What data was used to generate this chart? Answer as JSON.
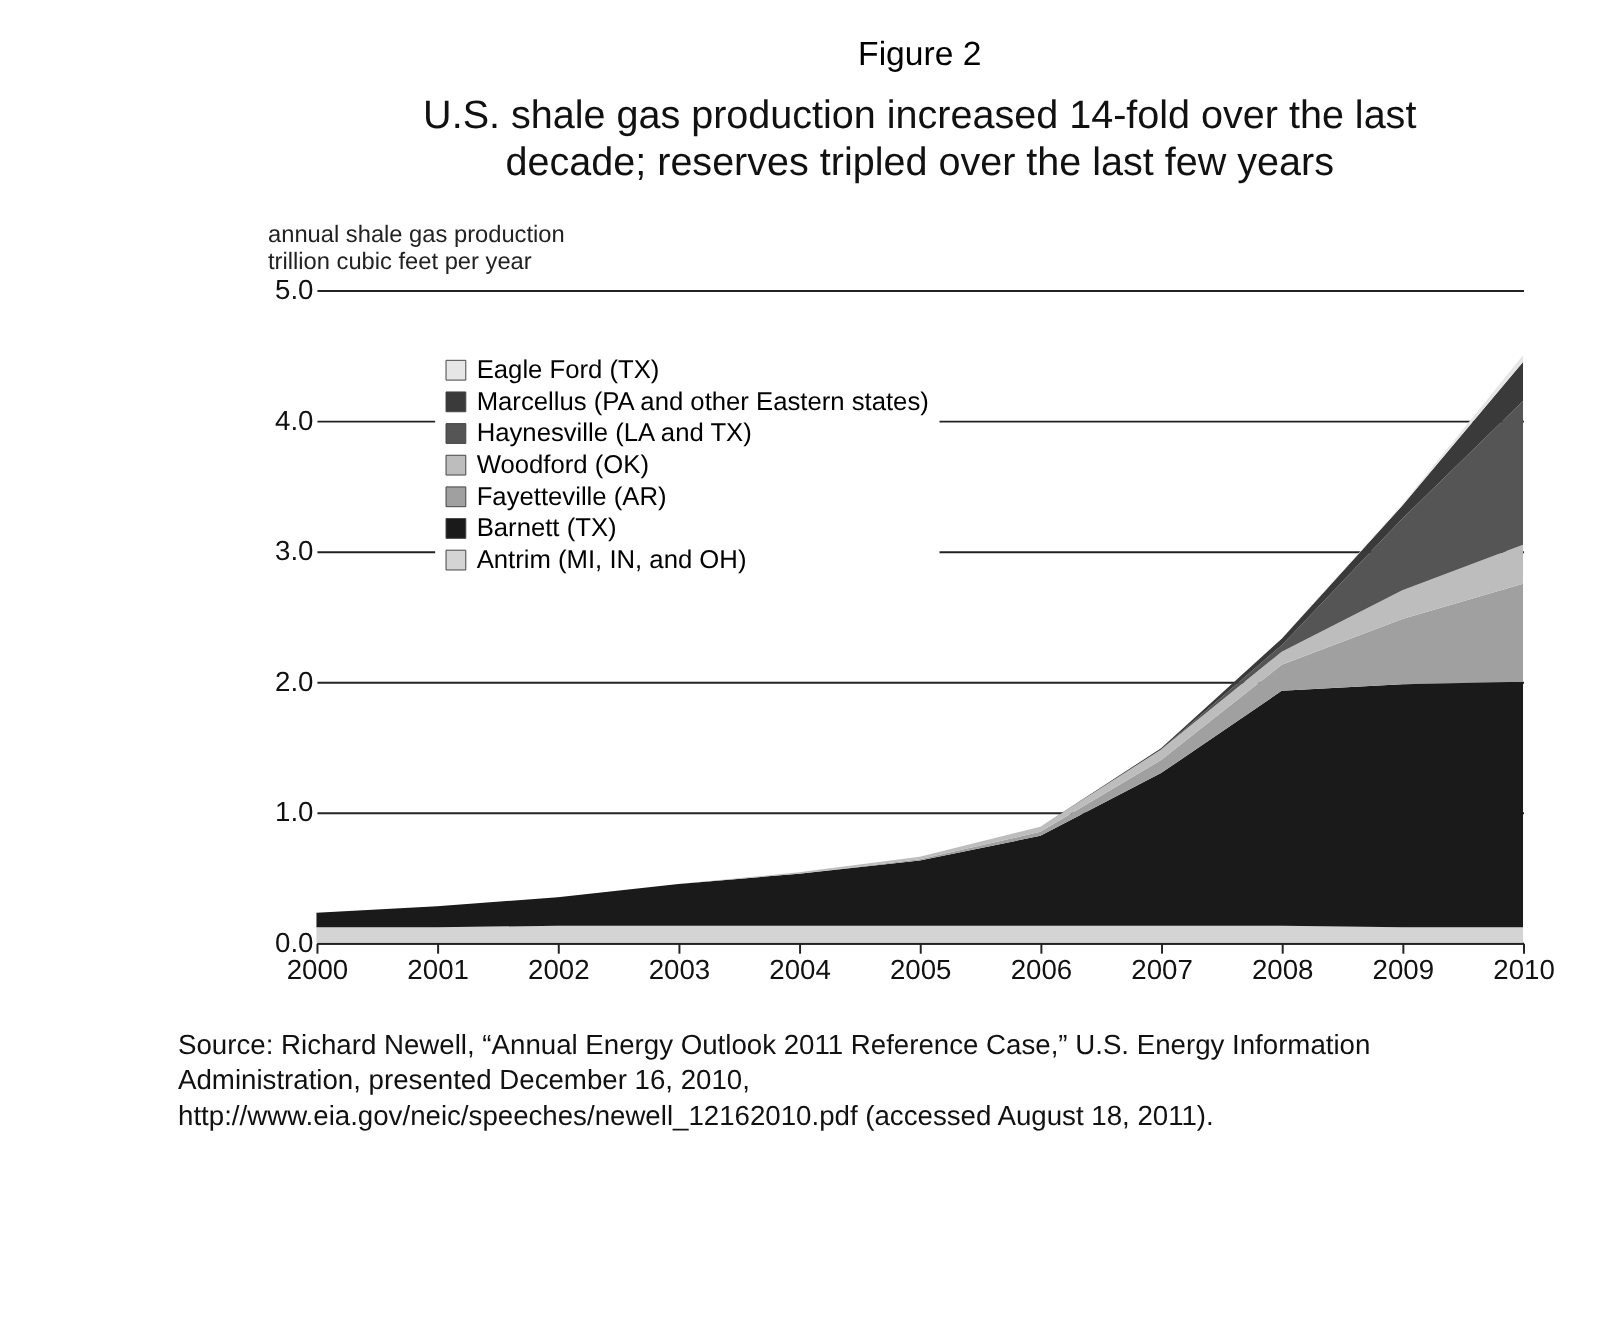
{
  "chart_data": {
    "type": "area",
    "stacked": true,
    "title": "Figure 2",
    "subtitle": "U.S. shale gas production increased 14-fold over the last decade; reserves tripled over the last few years",
    "ylabel": "annual shale gas production\ntrillion cubic feet per year",
    "x": [
      2000,
      2001,
      2002,
      2003,
      2004,
      2005,
      2006,
      2007,
      2008,
      2009,
      2010
    ],
    "series": [
      {
        "name": "Antrim (MI, IN, and OH)",
        "color": "#d4d4d4",
        "values": [
          0.12,
          0.12,
          0.13,
          0.13,
          0.13,
          0.13,
          0.13,
          0.13,
          0.13,
          0.12,
          0.12
        ]
      },
      {
        "name": "Barnett (TX)",
        "color": "#1a1a1a",
        "values": [
          0.11,
          0.16,
          0.22,
          0.32,
          0.4,
          0.5,
          0.69,
          1.17,
          1.8,
          1.86,
          1.88
        ]
      },
      {
        "name": "Fayetteville (AR)",
        "color": "#a0a0a0",
        "values": [
          0,
          0,
          0,
          0,
          0,
          0.01,
          0.03,
          0.1,
          0.2,
          0.5,
          0.75
        ]
      },
      {
        "name": "Woodford (OK)",
        "color": "#bdbdbd",
        "values": [
          0,
          0,
          0,
          0,
          0.01,
          0.02,
          0.04,
          0.08,
          0.1,
          0.22,
          0.3
        ]
      },
      {
        "name": "Haynesville (LA and TX)",
        "color": "#555555",
        "values": [
          0,
          0,
          0,
          0,
          0,
          0,
          0,
          0,
          0.05,
          0.55,
          1.1
        ]
      },
      {
        "name": "Marcellus (PA and other Eastern states)",
        "color": "#3a3a3a",
        "values": [
          0,
          0,
          0,
          0,
          0,
          0,
          0,
          0.01,
          0.05,
          0.1,
          0.3
        ]
      },
      {
        "name": "Eagle Ford (TX)",
        "color": "#e6e6e6",
        "values": [
          0,
          0,
          0,
          0,
          0,
          0,
          0,
          0,
          0,
          0.01,
          0.05
        ]
      }
    ],
    "xlim": [
      2000,
      2010
    ],
    "xticks": [
      2000,
      2001,
      2002,
      2003,
      2004,
      2005,
      2006,
      2007,
      2008,
      2009,
      2010
    ],
    "ylim": [
      0,
      5
    ],
    "yticks": [
      {
        "value": 0,
        "label": "0.0"
      },
      {
        "value": 1,
        "label": "1.0"
      },
      {
        "value": 2,
        "label": "2.0"
      },
      {
        "value": 3,
        "label": "3.0"
      },
      {
        "value": 4,
        "label": "4.0"
      },
      {
        "value": 5,
        "label": "5.0"
      }
    ],
    "grid": "y",
    "legend": "top left",
    "annotations": [
      "Source: Richard Newell, “Annual Energy Outlook 2011 Reference Case,” U.S. Energy Information Administration, presented December 16, 2010, http://www.eia.gov/neic/speeches/newell_12162010.pdf (accessed August 18, 2011)."
    ]
  }
}
